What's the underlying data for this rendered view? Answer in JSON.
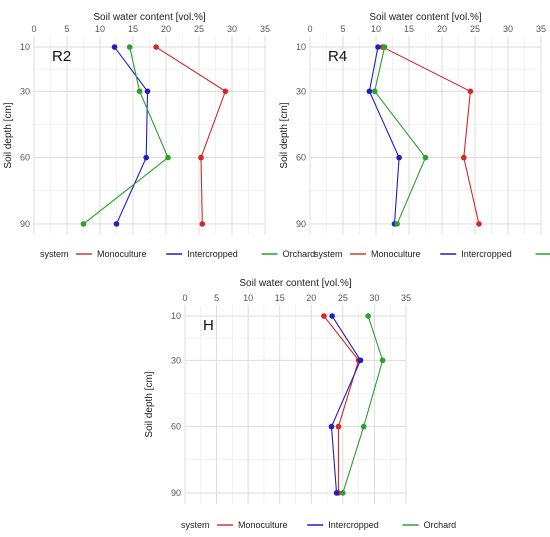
{
  "chart_data": [
    {
      "type": "line",
      "panel_label": "R2",
      "xlabel": "Soil water content [vol.%]",
      "ylabel": "Soil depth [cm]",
      "xlim": [
        0,
        35
      ],
      "xticks": [
        0,
        5,
        10,
        15,
        20,
        25,
        30,
        35
      ],
      "ylim": [
        5,
        95
      ],
      "yticks": [
        10,
        30,
        60,
        90
      ],
      "grid": true,
      "legend": {
        "title": "system",
        "position": "bottom"
      },
      "series": [
        {
          "name": "Monoculture",
          "color": "#d62728",
          "depth": [
            10,
            30,
            60,
            90
          ],
          "water": [
            18.5,
            29.0,
            25.3,
            25.5
          ]
        },
        {
          "name": "Intercropped",
          "color": "#1f1fbf",
          "depth": [
            10,
            30,
            60,
            90
          ],
          "water": [
            12.2,
            17.2,
            17.0,
            12.5
          ]
        },
        {
          "name": "Orchard",
          "color": "#2ca02c",
          "depth": [
            10,
            30,
            60,
            90
          ],
          "water": [
            14.5,
            16.0,
            20.3,
            7.5
          ]
        }
      ]
    },
    {
      "type": "line",
      "panel_label": "R4",
      "xlabel": "Soil water content [vol.%]",
      "ylabel": "Soil depth [cm]",
      "xlim": [
        0,
        35
      ],
      "xticks": [
        0,
        5,
        10,
        15,
        20,
        25,
        30,
        35
      ],
      "ylim": [
        5,
        95
      ],
      "yticks": [
        10,
        30,
        60,
        90
      ],
      "grid": true,
      "legend": {
        "title": "system",
        "position": "bottom"
      },
      "series": [
        {
          "name": "Monoculture",
          "color": "#d62728",
          "depth": [
            10,
            30,
            60,
            90
          ],
          "water": [
            11.0,
            24.3,
            23.3,
            25.6
          ]
        },
        {
          "name": "Intercropped",
          "color": "#1f1fbf",
          "depth": [
            10,
            30,
            60,
            90
          ],
          "water": [
            10.3,
            9.0,
            13.5,
            12.8
          ]
        },
        {
          "name": "Orchard",
          "color": "#2ca02c",
          "depth": [
            10,
            30,
            60,
            90
          ],
          "water": [
            11.3,
            9.8,
            17.5,
            13.2
          ]
        }
      ]
    },
    {
      "type": "line",
      "panel_label": "H",
      "xlabel": "Soil water content [vol.%]",
      "ylabel": "Soil depth [cm]",
      "xlim": [
        0,
        35
      ],
      "xticks": [
        0,
        5,
        10,
        15,
        20,
        25,
        30,
        35
      ],
      "ylim": [
        5,
        95
      ],
      "yticks": [
        10,
        30,
        60,
        90
      ],
      "grid": true,
      "legend": {
        "title": "system",
        "position": "bottom"
      },
      "series": [
        {
          "name": "Monoculture",
          "color": "#d62728",
          "depth": [
            10,
            30,
            60,
            90
          ],
          "water": [
            22.0,
            27.5,
            24.3,
            24.3
          ]
        },
        {
          "name": "Intercropped",
          "color": "#1f1fbf",
          "depth": [
            10,
            30,
            60,
            90
          ],
          "water": [
            23.3,
            27.8,
            23.2,
            24.0
          ]
        },
        {
          "name": "Orchard",
          "color": "#2ca02c",
          "depth": [
            10,
            30,
            60,
            90
          ],
          "water": [
            29.0,
            31.3,
            28.3,
            25.0
          ]
        }
      ]
    }
  ]
}
